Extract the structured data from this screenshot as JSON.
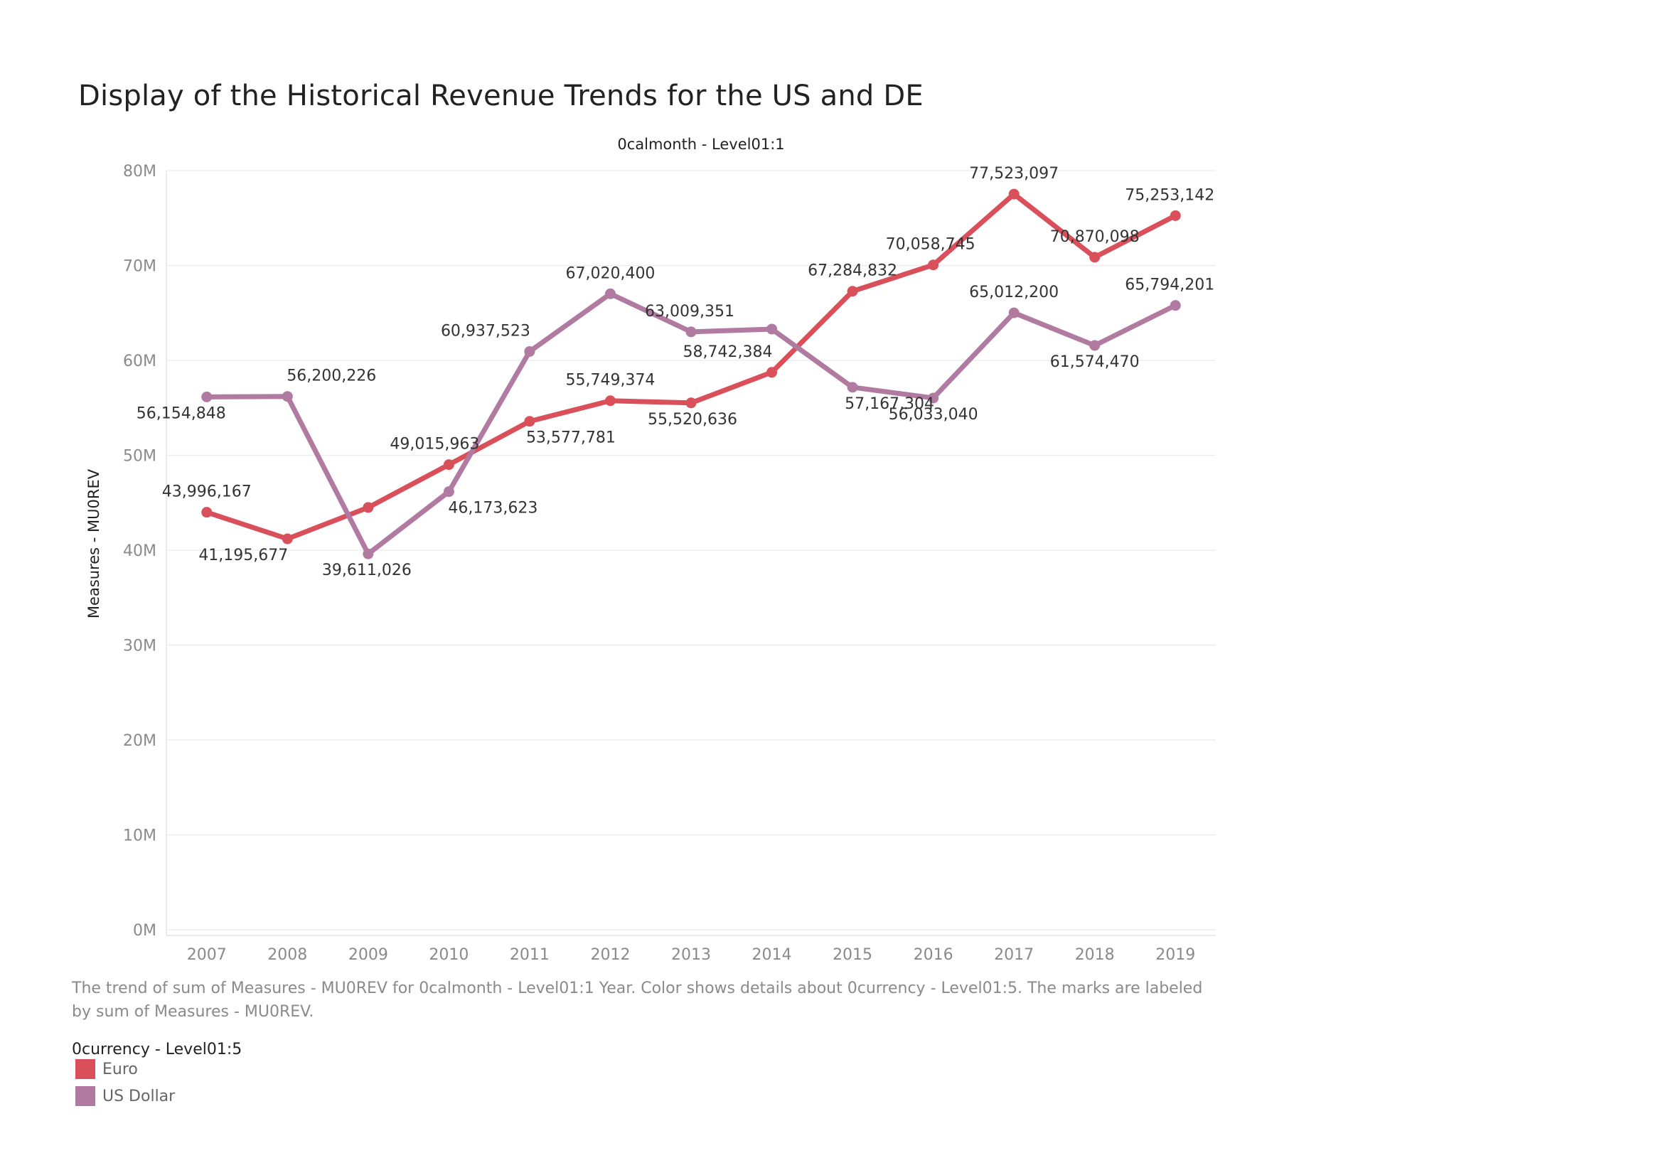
{
  "chart_data": {
    "type": "line",
    "title": "Display of the Historical Revenue Trends for the US and DE",
    "x_axis_header": "0calmonth - Level01:1",
    "ylabel": "Measures - MU0REV",
    "categories": [
      "2007",
      "2008",
      "2009",
      "2010",
      "2011",
      "2012",
      "2013",
      "2014",
      "2015",
      "2016",
      "2017",
      "2018",
      "2019"
    ],
    "ylim": [
      0,
      80000000
    ],
    "y_ticks": [
      {
        "value": 0,
        "label": "0M"
      },
      {
        "value": 10000000,
        "label": "10M"
      },
      {
        "value": 20000000,
        "label": "20M"
      },
      {
        "value": 30000000,
        "label": "30M"
      },
      {
        "value": 40000000,
        "label": "40M"
      },
      {
        "value": 50000000,
        "label": "50M"
      },
      {
        "value": 60000000,
        "label": "60M"
      },
      {
        "value": 70000000,
        "label": "70M"
      },
      {
        "value": 80000000,
        "label": "80M"
      }
    ],
    "grid": true,
    "series": [
      {
        "name": "Euro",
        "color": "#d9505a",
        "values": [
          43996167,
          41195677,
          44500000,
          49015963,
          53577781,
          55749374,
          55520636,
          58742384,
          67284832,
          70058745,
          77523097,
          70870098,
          75253142
        ],
        "labels": [
          "43,996,167",
          "41,195,677",
          null,
          "49,015,963",
          "53,577,781",
          "55,749,374",
          "55,520,636",
          "58,742,384",
          "67,284,832",
          "70,058,745",
          "77,523,097",
          "70,870,098",
          "75,253,142"
        ]
      },
      {
        "name": "US Dollar",
        "color": "#b07aa1",
        "values": [
          56154848,
          56200226,
          39611026,
          46173623,
          60937523,
          67020400,
          63009351,
          63300000,
          57167304,
          56033040,
          65012200,
          61574470,
          65794201
        ],
        "labels": [
          "56,154,848",
          "56,200,226",
          "39,611,026",
          "46,173,623",
          "60,937,523",
          "67,020,400",
          "63,009,351",
          null,
          "57,167,304",
          "56,033,040",
          "65,012,200",
          "61,574,470",
          "65,794,201"
        ]
      }
    ],
    "legend": {
      "title": "0currency - Level01:5",
      "position": "bottom-left",
      "items": [
        {
          "label": "Euro",
          "color": "#d9505a"
        },
        {
          "label": "US Dollar",
          "color": "#b07aa1"
        }
      ]
    },
    "caption": "The trend of sum of Measures - MU0REV for 0calmonth - Level01:1 Year.  Color shows details about 0currency - Level01:5.  The marks are labeled by sum of Measures - MU0REV."
  }
}
